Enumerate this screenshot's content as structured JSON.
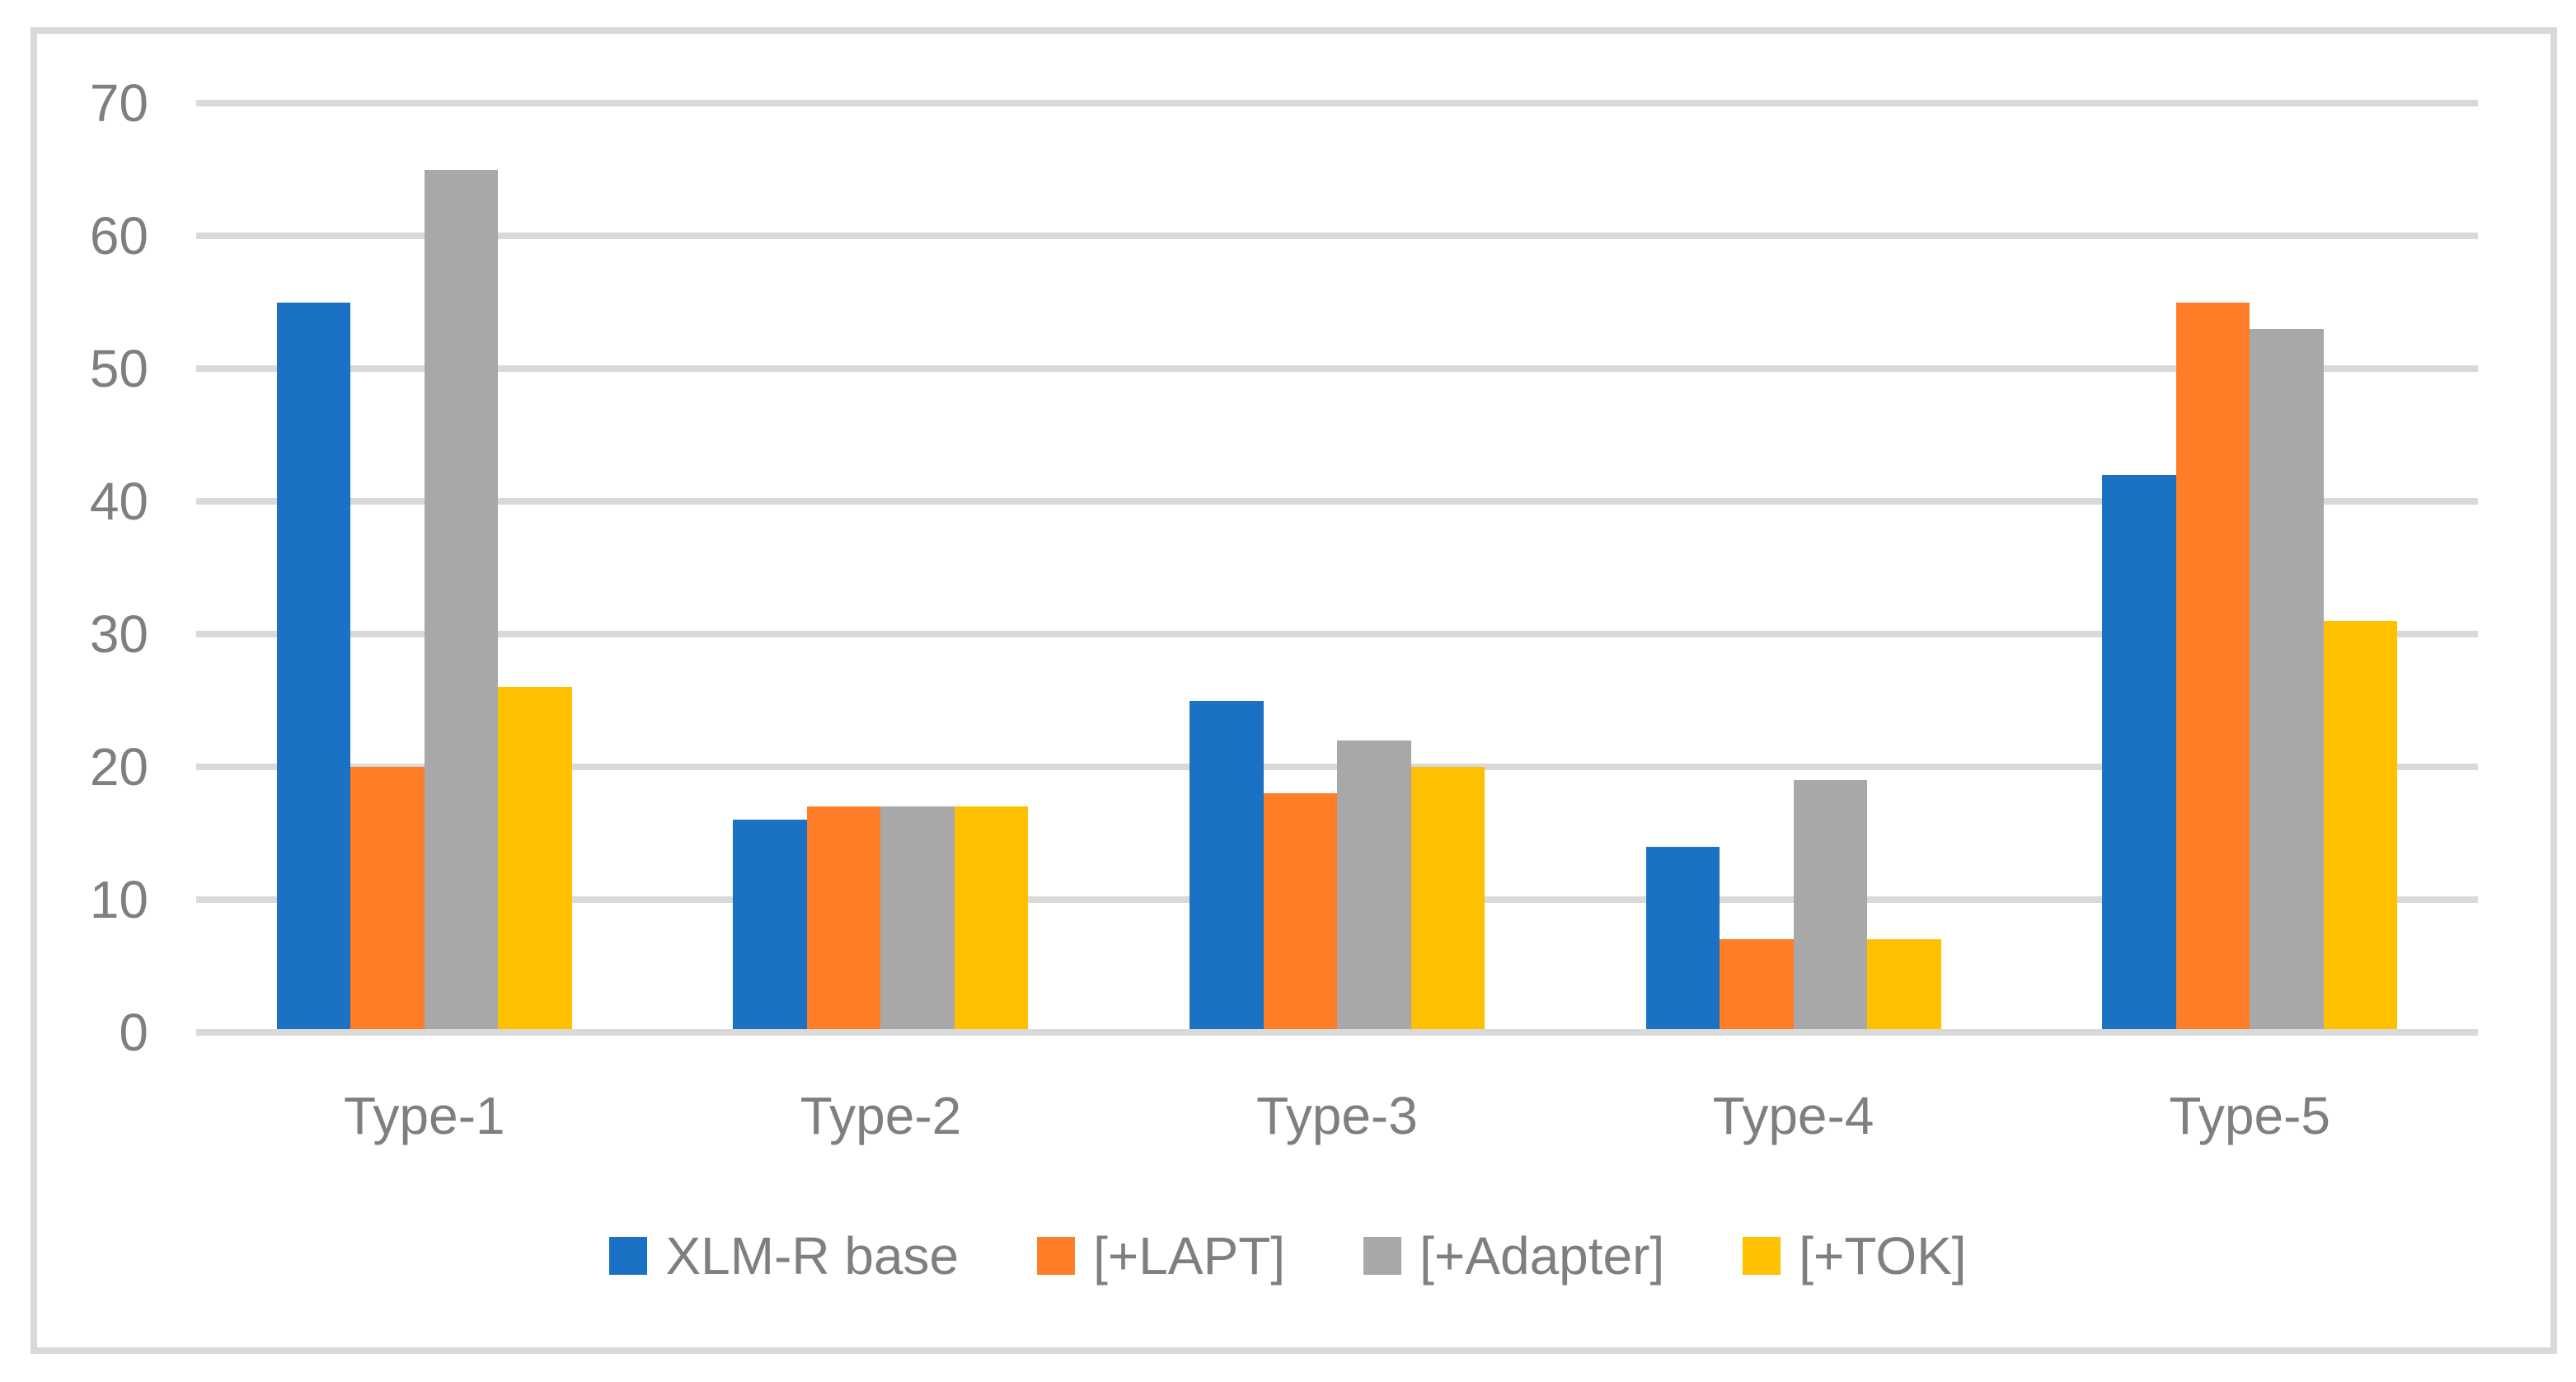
{
  "chart_data": {
    "type": "bar",
    "title": "",
    "xlabel": "",
    "ylabel": "",
    "categories": [
      "Type-1",
      "Type-2",
      "Type-3",
      "Type-4",
      "Type-5"
    ],
    "series": [
      {
        "name": "XLM-R base",
        "color": "#1B72C4",
        "values": [
          55,
          16,
          25,
          14,
          42
        ]
      },
      {
        "name": "[+LAPT]",
        "color": "#FF7D27",
        "values": [
          20,
          17,
          18,
          7,
          55
        ]
      },
      {
        "name": "[+Adapter]",
        "color": "#A8A8A8",
        "values": [
          65,
          17,
          22,
          19,
          53
        ]
      },
      {
        "name": "[+TOK]",
        "color": "#FFC000",
        "values": [
          26,
          17,
          20,
          7,
          31
        ]
      }
    ],
    "y_axis": {
      "min": 0,
      "max": 70,
      "step": 10,
      "tick_labels": [
        "0",
        "10",
        "20",
        "30",
        "40",
        "50",
        "60",
        "70"
      ]
    },
    "grid": "horizontal",
    "legend_position": "bottom",
    "colors": {
      "gridline": "#D9D9D9",
      "axis_line": "#D9D9D9",
      "chart_border": "#D9D9D9",
      "axis_text": "#7F7F7F",
      "background": "#FFFFFF"
    }
  }
}
